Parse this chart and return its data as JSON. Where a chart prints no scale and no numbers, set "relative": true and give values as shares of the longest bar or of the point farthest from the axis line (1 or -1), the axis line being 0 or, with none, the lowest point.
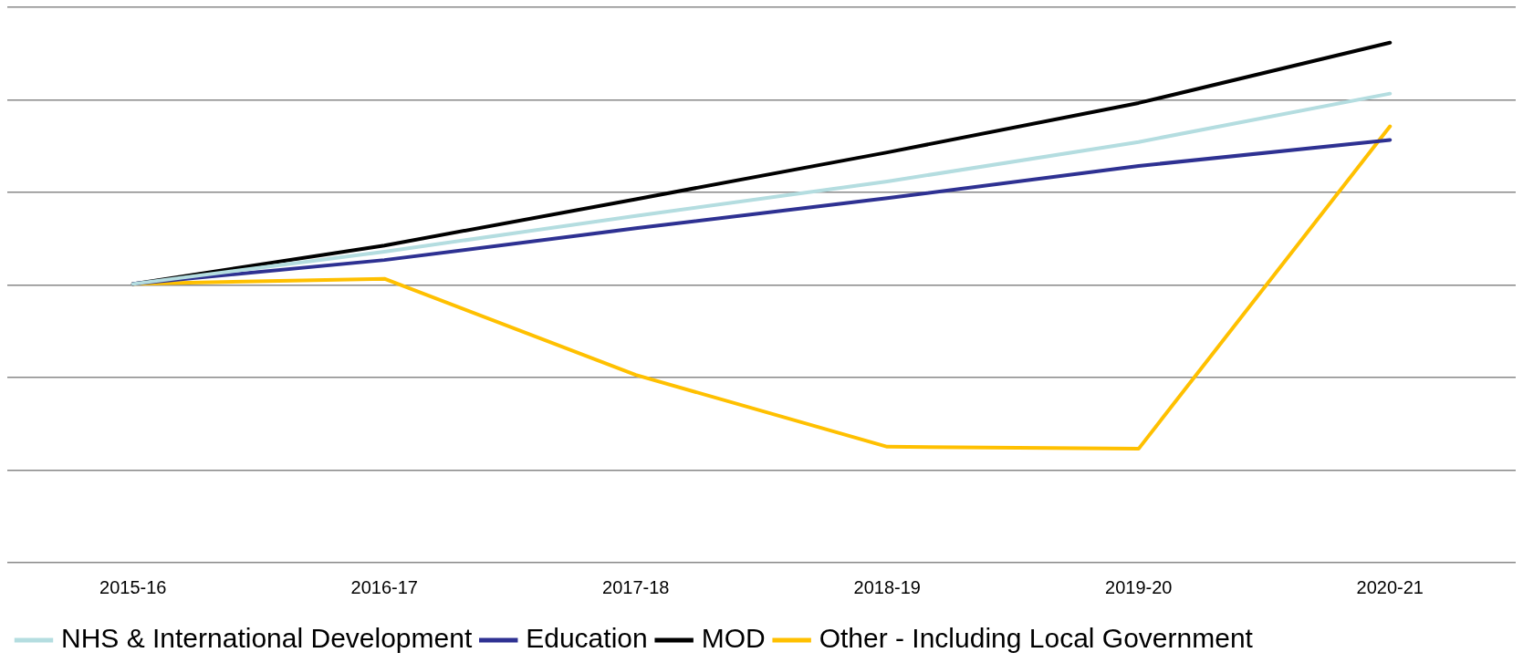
{
  "chart_data": {
    "type": "line",
    "relative": true,
    "grid": "y",
    "legend": "bottom",
    "marker": "none",
    "line_style": "solid",
    "categories": [
      "2015-16",
      "2016-17",
      "2017-18",
      "2018-19",
      "2019-20",
      "2020-21"
    ],
    "series": [
      {
        "name": "NHS & International Development",
        "color": "#b4dde0",
        "values": [
          0.536,
          0.598,
          0.667,
          0.733,
          0.809,
          0.902
        ]
      },
      {
        "name": "Education",
        "color": "#2e3192",
        "values": [
          0.536,
          0.582,
          0.643,
          0.701,
          0.763,
          0.813
        ]
      },
      {
        "name": "MOD",
        "color": "#000000",
        "values": [
          0.536,
          0.61,
          0.699,
          0.789,
          0.884,
          1
        ]
      },
      {
        "name": "Other - Including Local Government",
        "color": "#ffc000",
        "values": [
          0.536,
          0.546,
          0.361,
          0.223,
          0.219,
          0.839
        ]
      }
    ]
  }
}
